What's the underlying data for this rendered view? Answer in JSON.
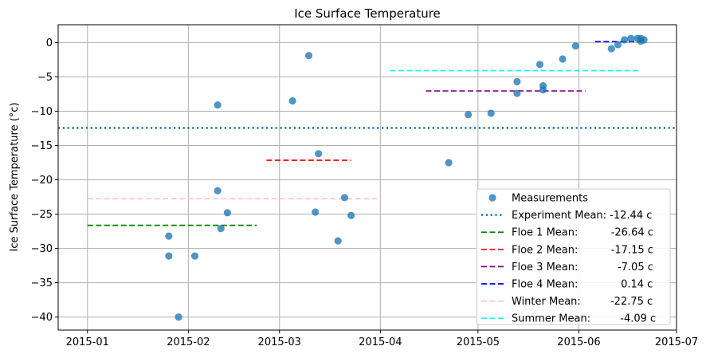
{
  "chart_data": {
    "type": "scatter",
    "title": "Ice Surface Temperature",
    "ylabel": "Ice Surface Temperature ($^{\\circ}c$)",
    "ylabel_display": "Ice Surface Temperature (°c)",
    "xlabel": "",
    "xlim": [
      "2014-12-23",
      "2015-07-01"
    ],
    "ylim": [
      -41.9,
      2.6
    ],
    "grid": true,
    "legend_position": "lower-right",
    "x_ticks": [
      "2015-01",
      "2015-02",
      "2015-03",
      "2015-04",
      "2015-05",
      "2015-06",
      "2015-07"
    ],
    "y_ticks": [
      0,
      -5,
      -10,
      -15,
      -20,
      -25,
      -30,
      -35,
      -40
    ],
    "series": [
      {
        "name": "Measurements",
        "kind": "scatter",
        "color": "#1f77b4",
        "points": [
          {
            "x": "2015-01-26",
            "y": -28.2
          },
          {
            "x": "2015-01-26",
            "y": -31.1
          },
          {
            "x": "2015-01-29",
            "y": -40.0
          },
          {
            "x": "2015-02-03",
            "y": -31.1
          },
          {
            "x": "2015-02-10",
            "y": -9.1
          },
          {
            "x": "2015-02-10",
            "y": -21.6
          },
          {
            "x": "2015-02-11",
            "y": -27.1
          },
          {
            "x": "2015-02-13",
            "y": -24.8
          },
          {
            "x": "2015-03-05",
            "y": -8.5
          },
          {
            "x": "2015-03-10",
            "y": -1.9
          },
          {
            "x": "2015-03-12",
            "y": -24.7
          },
          {
            "x": "2015-03-13",
            "y": -16.2
          },
          {
            "x": "2015-03-19",
            "y": -28.9
          },
          {
            "x": "2015-03-21",
            "y": -22.6
          },
          {
            "x": "2015-03-23",
            "y": -25.2
          },
          {
            "x": "2015-04-22",
            "y": -17.5
          },
          {
            "x": "2015-04-28",
            "y": -10.5
          },
          {
            "x": "2015-05-05",
            "y": -10.3
          },
          {
            "x": "2015-05-13",
            "y": -5.7
          },
          {
            "x": "2015-05-13",
            "y": -7.4
          },
          {
            "x": "2015-05-20",
            "y": -3.2
          },
          {
            "x": "2015-05-21",
            "y": -6.3
          },
          {
            "x": "2015-05-21",
            "y": -6.9
          },
          {
            "x": "2015-05-27",
            "y": -2.4
          },
          {
            "x": "2015-05-31",
            "y": -0.5
          },
          {
            "x": "2015-06-11",
            "y": -0.9
          },
          {
            "x": "2015-06-13",
            "y": -0.3
          },
          {
            "x": "2015-06-15",
            "y": 0.4
          },
          {
            "x": "2015-06-17",
            "y": 0.6
          },
          {
            "x": "2015-06-19",
            "y": 0.6
          },
          {
            "x": "2015-06-20",
            "y": 0.6
          },
          {
            "x": "2015-06-20",
            "y": 0.2
          },
          {
            "x": "2015-06-21",
            "y": 0.4
          }
        ]
      },
      {
        "name": "Experiment Mean",
        "label": "Experiment Mean: -12.44 c",
        "kind": "hline",
        "y": -12.44,
        "x_start": "2014-12-23",
        "x_end": "2015-07-01",
        "color": "#1f77b4",
        "style": "dotted"
      },
      {
        "name": "Floe 1 Mean",
        "label": "Floe 1 Mean:          -26.64 c",
        "kind": "hline",
        "y": -26.64,
        "x_start": "2015-01-01",
        "x_end": "2015-02-22",
        "color": "#008000",
        "style": "dashed"
      },
      {
        "name": "Floe 2 Mean",
        "label": "Floe 2 Mean:          -17.15 c",
        "kind": "hline",
        "y": -17.15,
        "x_start": "2015-02-25",
        "x_end": "2015-03-23",
        "color": "#ff0000",
        "style": "dashed"
      },
      {
        "name": "Floe 3 Mean",
        "label": "Floe 3 Mean:            -7.05 c",
        "kind": "hline",
        "y": -7.05,
        "x_start": "2015-04-15",
        "x_end": "2015-06-03",
        "color": "#800080",
        "style": "dashed"
      },
      {
        "name": "Floe 4 Mean",
        "label": "Floe 4 Mean:             0.14 c",
        "kind": "hline",
        "y": 0.14,
        "x_start": "2015-06-06",
        "x_end": "2015-06-20",
        "color": "#0000ff",
        "style": "dashed"
      },
      {
        "name": "Winter Mean",
        "label": "Winter Mean:         -22.75 c",
        "kind": "hline",
        "y": -22.75,
        "x_start": "2015-01-01",
        "x_end": "2015-03-31",
        "color": "#ffc0cb",
        "style": "dashed"
      },
      {
        "name": "Summer Mean",
        "label": "Summer Mean:         -4.09 c",
        "kind": "hline",
        "y": -4.09,
        "x_start": "2015-04-04",
        "x_end": "2015-06-20",
        "color": "#00ffff",
        "style": "dashed"
      }
    ]
  }
}
